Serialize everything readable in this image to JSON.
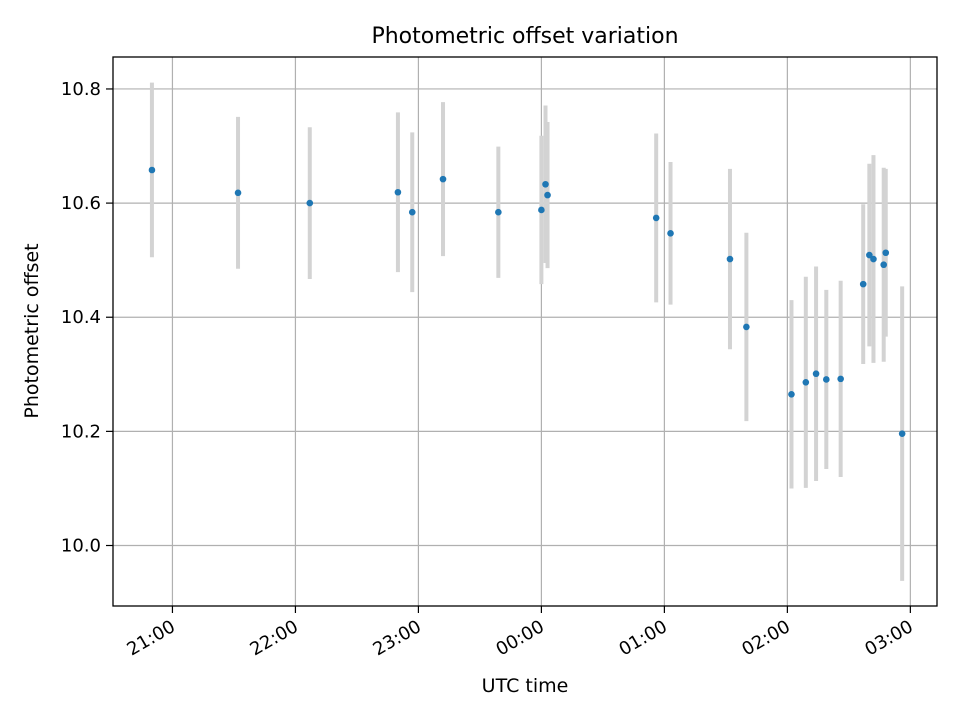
{
  "chart_data": {
    "type": "scatter",
    "title": "Photometric offset variation",
    "xlabel": "UTC time",
    "ylabel": "Photometric offset",
    "x_ticks": [
      "21:00",
      "22:00",
      "23:00",
      "00:00",
      "01:00",
      "02:00",
      "03:00"
    ],
    "x_tick_times": [
      "21:00",
      "22:00",
      "23:00",
      "24:00",
      "25:00",
      "26:00",
      "27:00"
    ],
    "y_ticks": [
      "10.0",
      "10.2",
      "10.4",
      "10.6",
      "10.8"
    ],
    "xlim": [
      "20:31",
      "27:13"
    ],
    "ylim": [
      9.894,
      10.856
    ],
    "grid": true,
    "point_color": "#1f77b4",
    "errorbar_color": "#d3d3d3",
    "series": [
      {
        "points": [
          {
            "x": "20:50",
            "y": 10.658,
            "err": 0.153
          },
          {
            "x": "21:32",
            "y": 10.618,
            "err": 0.133
          },
          {
            "x": "22:07",
            "y": 10.6,
            "err": 0.133
          },
          {
            "x": "22:50",
            "y": 10.619,
            "err": 0.14
          },
          {
            "x": "22:57",
            "y": 10.584,
            "err": 0.14
          },
          {
            "x": "23:12",
            "y": 10.642,
            "err": 0.135
          },
          {
            "x": "23:39",
            "y": 10.584,
            "err": 0.115
          },
          {
            "x": "24:00",
            "y": 10.588,
            "err": 0.13
          },
          {
            "x": "24:02",
            "y": 10.633,
            "err": 0.138
          },
          {
            "x": "24:03",
            "y": 10.614,
            "err": 0.128
          },
          {
            "x": "24:56",
            "y": 10.574,
            "err": 0.148
          },
          {
            "x": "25:03",
            "y": 10.547,
            "err": 0.125
          },
          {
            "x": "25:32",
            "y": 10.502,
            "err": 0.158
          },
          {
            "x": "25:40",
            "y": 10.383,
            "err": 0.165
          },
          {
            "x": "26:02",
            "y": 10.265,
            "err": 0.165
          },
          {
            "x": "26:09",
            "y": 10.286,
            "err": 0.185
          },
          {
            "x": "26:14",
            "y": 10.301,
            "err": 0.188
          },
          {
            "x": "26:19",
            "y": 10.291,
            "err": 0.157
          },
          {
            "x": "26:26",
            "y": 10.292,
            "err": 0.172
          },
          {
            "x": "26:37",
            "y": 10.458,
            "err": 0.14
          },
          {
            "x": "26:40",
            "y": 10.509,
            "err": 0.16
          },
          {
            "x": "26:42",
            "y": 10.502,
            "err": 0.182
          },
          {
            "x": "26:47",
            "y": 10.492,
            "err": 0.17
          },
          {
            "x": "26:48",
            "y": 10.513,
            "err": 0.147
          },
          {
            "x": "26:56",
            "y": 10.196,
            "err": 0.258
          }
        ]
      }
    ]
  }
}
